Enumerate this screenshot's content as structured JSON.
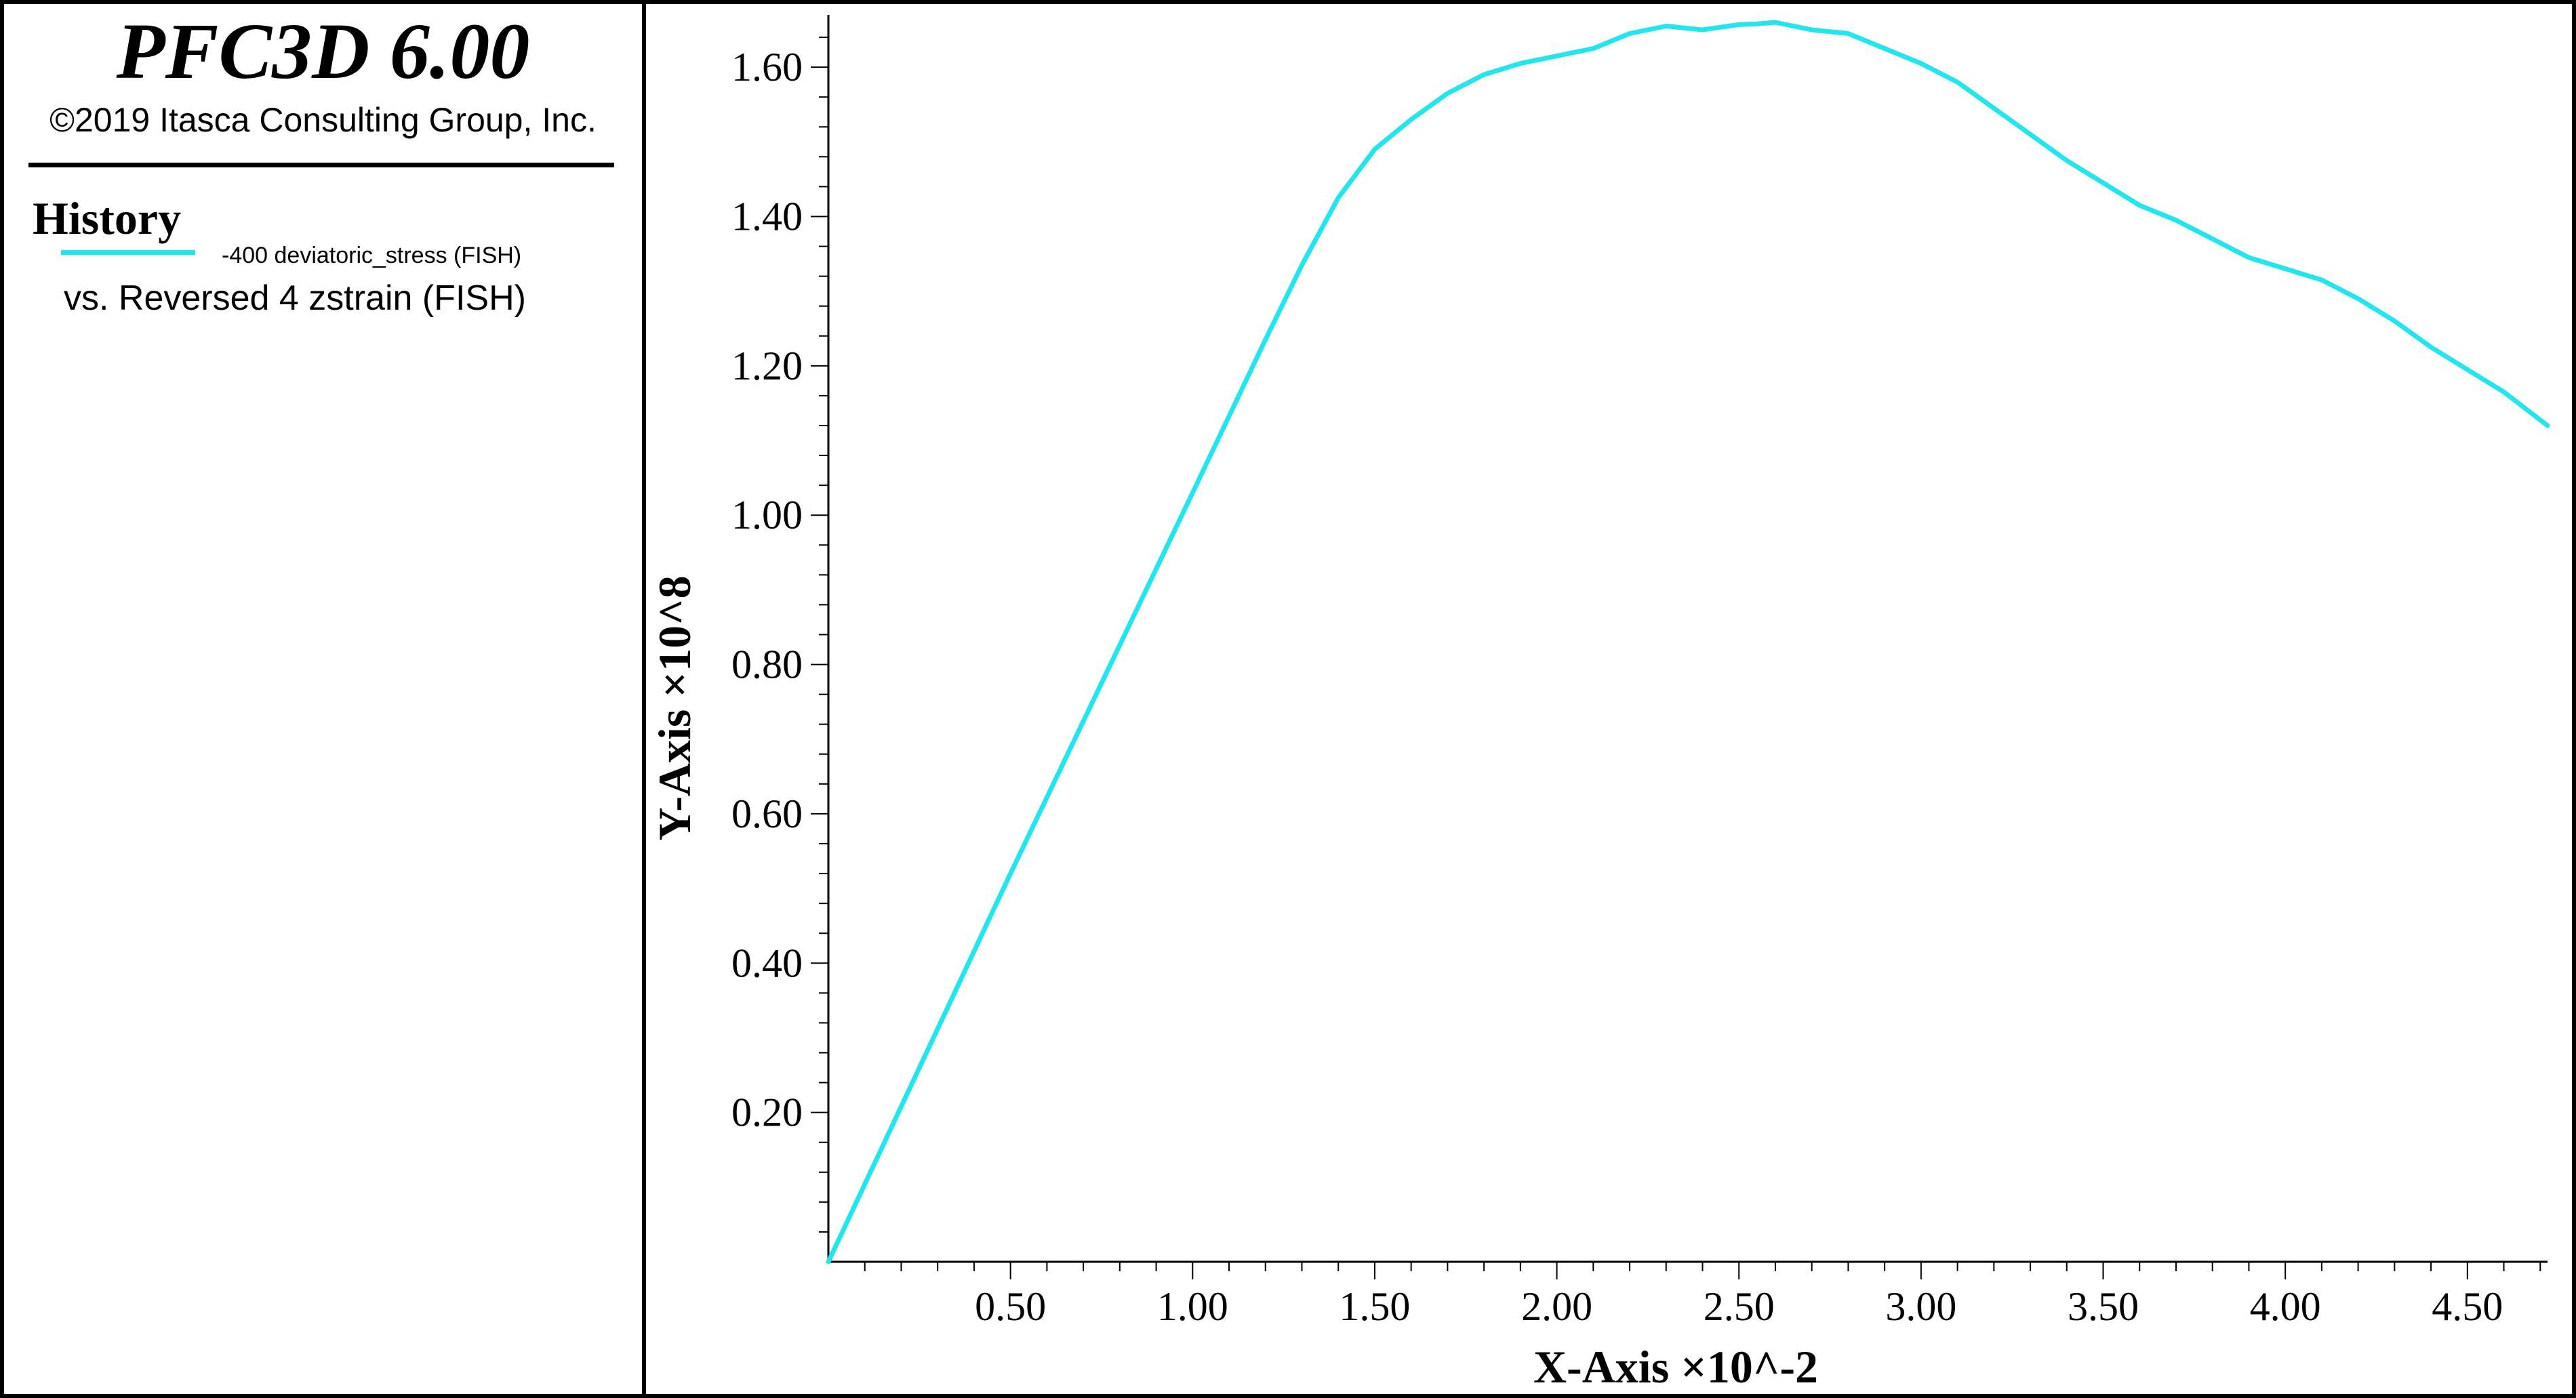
{
  "header": {
    "app_title": "PFC3D 6.00",
    "copyright": "©2019 Itasca Consulting Group, Inc."
  },
  "legend": {
    "heading": "History",
    "series_label": "-400 deviatoric_stress (FISH)",
    "vs_label": "vs. Reversed 4 zstrain (FISH)",
    "line_color": "#22e5ee"
  },
  "chart_data": {
    "type": "line",
    "xlabel": "X-Axis ×10^-2",
    "ylabel": "Y-Axis ×10^8",
    "xlim": [
      0,
      4.72
    ],
    "ylim": [
      0,
      1.67
    ],
    "x_ticks": [
      "0.50",
      "1.00",
      "1.50",
      "2.00",
      "2.50",
      "3.00",
      "3.50",
      "4.00",
      "4.50"
    ],
    "y_ticks": [
      "0.20",
      "0.40",
      "0.60",
      "0.80",
      "1.00",
      "1.20",
      "1.40",
      "1.60"
    ],
    "grid": false,
    "series": [
      {
        "name": "-400 deviatoric_stress (FISH)",
        "color": "#22e5ee",
        "x": [
          0,
          0.5,
          1.0,
          1.2,
          1.3,
          1.4,
          1.5,
          1.6,
          1.7,
          1.8,
          1.9,
          2.0,
          2.1,
          2.2,
          2.3,
          2.4,
          2.5,
          2.55,
          2.6,
          2.65,
          2.7,
          2.8,
          2.9,
          3.0,
          3.1,
          3.2,
          3.3,
          3.4,
          3.5,
          3.6,
          3.7,
          3.8,
          3.9,
          4.0,
          4.1,
          4.2,
          4.3,
          4.4,
          4.5,
          4.6,
          4.72
        ],
        "y": [
          0,
          0.52,
          1.03,
          1.235,
          1.335,
          1.425,
          1.49,
          1.53,
          1.565,
          1.59,
          1.605,
          1.615,
          1.625,
          1.645,
          1.655,
          1.65,
          1.657,
          1.658,
          1.66,
          1.655,
          1.65,
          1.645,
          1.625,
          1.605,
          1.58,
          1.545,
          1.51,
          1.475,
          1.445,
          1.415,
          1.395,
          1.37,
          1.345,
          1.33,
          1.315,
          1.29,
          1.26,
          1.225,
          1.195,
          1.165,
          1.12
        ]
      }
    ]
  }
}
